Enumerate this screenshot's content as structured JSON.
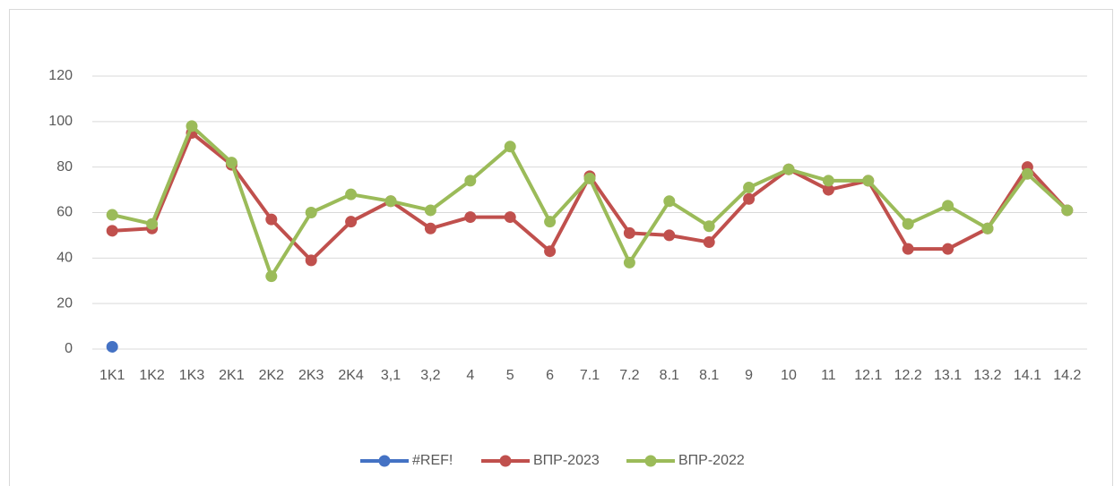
{
  "chart_data": {
    "type": "line",
    "categories": [
      "1K1",
      "1K2",
      "1K3",
      "2K1",
      "2K2",
      "2K3",
      "2K4",
      "3,1",
      "3,2",
      "4",
      "5",
      "6",
      "7.1",
      "7.2",
      "8.1",
      "8.1",
      "9",
      "10",
      "11",
      "12.1",
      "12.2",
      "13.1",
      "13.2",
      "14.1",
      "14.2"
    ],
    "series": [
      {
        "name": "#REF!",
        "color": "#4472c4",
        "values": [
          1,
          null,
          null,
          null,
          null,
          null,
          null,
          null,
          null,
          null,
          null,
          null,
          null,
          null,
          null,
          null,
          null,
          null,
          null,
          null,
          null,
          null,
          null,
          null,
          null
        ]
      },
      {
        "name": "ВПР-2023",
        "color": "#c0504d",
        "values": [
          52,
          53,
          95,
          81,
          57,
          39,
          56,
          65,
          53,
          58,
          58,
          43,
          76,
          51,
          50,
          47,
          66,
          79,
          70,
          74,
          44,
          44,
          53,
          80,
          61
        ]
      },
      {
        "name": "ВПР-2022",
        "color": "#9bbb59",
        "values": [
          59,
          55,
          98,
          82,
          32,
          60,
          68,
          65,
          61,
          74,
          89,
          56,
          75,
          38,
          65,
          54,
          71,
          79,
          74,
          74,
          55,
          63,
          53,
          77,
          61
        ]
      }
    ],
    "ylim": [
      0,
      120
    ],
    "yticks": [
      0,
      20,
      40,
      60,
      80,
      100,
      120
    ],
    "grid": true,
    "legend": "bottom"
  }
}
